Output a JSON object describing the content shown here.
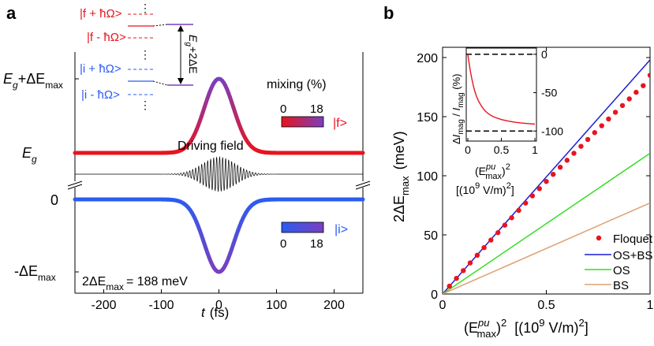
{
  "chart_data": [
    {
      "panel": "a",
      "type": "line",
      "xlabel_var": "t",
      "xlabel_unit": "(fs)",
      "x_ticks": [
        "-200",
        "-100",
        "0",
        "100",
        "200"
      ],
      "x_tick_values": [
        -200,
        -100,
        0,
        100,
        200
      ],
      "xlim": [
        -250,
        250
      ],
      "pulse_fwhm_fs": 60,
      "level_labels": {
        "upper_max": {
          "main": "E",
          "sub": "g",
          "plus": "+ΔE",
          "sub2": "max"
        },
        "upper_base": {
          "main": "E",
          "sub": "g"
        },
        "lower_zero": "0",
        "lower_min": {
          "prefix": "-ΔE",
          "sub": "max"
        }
      },
      "driving_field_label": "Driving field",
      "splitting_label": {
        "text": "2ΔE",
        "sub": "max",
        "value": "= 188 meV"
      },
      "upper_colorbar": {
        "title": "mixing (%)",
        "min": "0",
        "max": "18",
        "state": "|f>",
        "from": "#e8141e",
        "to": "#7b3fbf"
      },
      "lower_colorbar": {
        "min": "0",
        "max": "18",
        "state": "|i>",
        "from": "#2b5cf0",
        "to": "#7b3fbf"
      },
      "diagram": {
        "labels": [
          "|f + ħΩ>",
          "|f - ħΩ>",
          "|i + ħΩ>",
          "|i - ħΩ>"
        ],
        "gap_label": "E",
        "gap_sub": "g",
        "gap_rest": "+2ΔE",
        "dots": "⋮"
      }
    },
    {
      "panel": "b",
      "type": "line+scatter",
      "xlabel": {
        "open": "(E",
        "sup": "pu",
        "sub": "max",
        "close": ")",
        "pow": "2",
        "unit": "[(10",
        "unit_pow": "9",
        "unit_rest": " V/m)",
        "unit_pow2": "2",
        "unit_end": "]"
      },
      "ylabel": {
        "main": "2ΔE",
        "sub": "max",
        "unit": "(meV)"
      },
      "xlim": [
        0,
        1
      ],
      "ylim": [
        0,
        200
      ],
      "x_ticks": [
        "0",
        "0.5",
        "1"
      ],
      "y_ticks": [
        "0",
        "50",
        "100",
        "150",
        "200"
      ],
      "series": [
        {
          "name": "Floquet",
          "style": "dots",
          "color": "#e8141e",
          "x": [
            0.033,
            0.067,
            0.1,
            0.133,
            0.167,
            0.2,
            0.233,
            0.267,
            0.3,
            0.333,
            0.367,
            0.4,
            0.433,
            0.467,
            0.5,
            0.533,
            0.567,
            0.6,
            0.633,
            0.667,
            0.7,
            0.733,
            0.767,
            0.8,
            0.833,
            0.867,
            0.9,
            0.933,
            0.967,
            1.0
          ],
          "y": [
            6.6,
            13.2,
            19.8,
            26.3,
            32.8,
            39.2,
            45.6,
            51.9,
            58.2,
            64.5,
            70.7,
            76.9,
            83.0,
            89.1,
            95.2,
            101.2,
            107.2,
            113.1,
            119.0,
            124.9,
            130.7,
            136.5,
            142.3,
            148.0,
            153.7,
            159.4,
            165.0,
            170.6,
            176.2,
            185.0
          ]
        },
        {
          "name": "OS+BS",
          "style": "line",
          "color": "#1d1dd6",
          "x": [
            0,
            1
          ],
          "y": [
            0,
            198
          ]
        },
        {
          "name": "OS",
          "style": "line",
          "color": "#33dd22",
          "x": [
            0,
            1
          ],
          "y": [
            0,
            119
          ]
        },
        {
          "name": "BS",
          "style": "line",
          "color": "#e0a070",
          "x": [
            0,
            1
          ],
          "y": [
            0,
            77
          ]
        }
      ],
      "legend_position": "bottom-right",
      "inset": {
        "type": "line",
        "xlabel": {
          "open": "(E",
          "sup": "pu",
          "sub": "max",
          "close": ")",
          "pow": "2",
          "unit": "[(10",
          "unit_pow": "9",
          "unit_rest": " V/m)",
          "unit_pow2": "2",
          "unit_end": "]"
        },
        "ylabel": {
          "a": "Δ",
          "b": "I",
          "c": "mag",
          "d": " / ",
          "e": "I",
          "f": "mag",
          "g": " (%)"
        },
        "xlim": [
          0,
          1
        ],
        "ylim": [
          -110,
          5
        ],
        "x_ticks": [
          "0",
          "0.5",
          "1"
        ],
        "y_ticks": [
          "0",
          "-50",
          "-100"
        ],
        "dashed_levels": [
          0,
          -100
        ],
        "series": {
          "name": "ΔImag/Imag",
          "color": "#e8141e",
          "x": [
            0.0,
            0.02,
            0.04,
            0.06,
            0.08,
            0.1,
            0.13,
            0.16,
            0.2,
            0.25,
            0.3,
            0.35,
            0.4,
            0.5,
            0.6,
            0.7,
            0.8,
            0.9,
            1.0
          ],
          "y": [
            0,
            -12,
            -23,
            -32,
            -40,
            -47,
            -55,
            -61,
            -67,
            -73,
            -77,
            -80,
            -82,
            -85,
            -87,
            -88.5,
            -89.5,
            -90.3,
            -91
          ]
        }
      }
    }
  ]
}
